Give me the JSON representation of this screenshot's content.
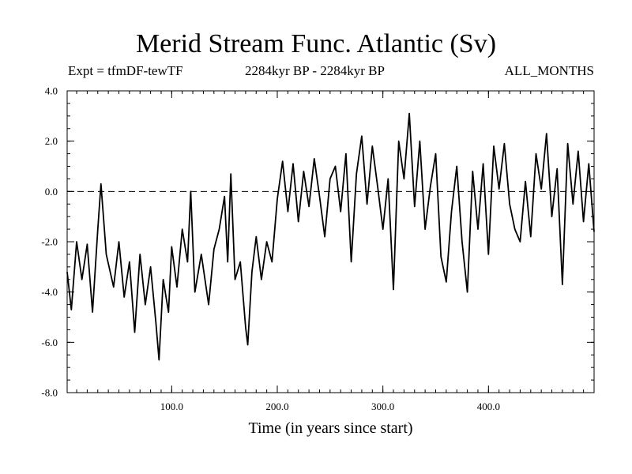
{
  "chart_data": {
    "type": "line",
    "title": "Merid Stream Func. Atlantic (Sv)",
    "experiment_label": "Expt = tfmDF-tewTF",
    "period_label": "2284kyr BP - 2284kyr BP",
    "season_label": "ALL_MONTHS",
    "xlabel": "Time (in years since start)",
    "ylabel": "",
    "xlim": [
      1,
      500
    ],
    "ylim": [
      -8,
      4
    ],
    "x_ticks": [
      100,
      200,
      300,
      400
    ],
    "x_tick_labels": [
      "100.0",
      "200.0",
      "300.0",
      "400.0"
    ],
    "y_ticks": [
      4,
      2,
      0,
      -2,
      -4,
      -6,
      -8
    ],
    "y_tick_labels": [
      "4.0",
      "2.0",
      "0.0",
      "-2.0",
      "-4.0",
      "-6.0",
      "-8.0"
    ],
    "reference_line": {
      "y": 0,
      "style": "dashed"
    },
    "series": [
      {
        "name": "Merid Stream Func. Atlantic",
        "x": [
          1,
          5,
          10,
          15,
          20,
          25,
          30,
          33,
          38,
          45,
          50,
          55,
          60,
          65,
          70,
          75,
          80,
          85,
          88,
          92,
          97,
          100,
          105,
          110,
          115,
          118,
          122,
          128,
          135,
          140,
          145,
          150,
          153,
          156,
          160,
          165,
          170,
          172,
          176,
          180,
          185,
          190,
          195,
          200,
          205,
          210,
          215,
          220,
          225,
          230,
          235,
          240,
          245,
          250,
          255,
          260,
          265,
          270,
          275,
          280,
          285,
          290,
          295,
          300,
          305,
          310,
          315,
          320,
          325,
          330,
          335,
          340,
          345,
          350,
          355,
          360,
          365,
          370,
          375,
          380,
          385,
          390,
          395,
          400,
          405,
          410,
          415,
          420,
          425,
          430,
          435,
          440,
          445,
          450,
          455,
          460,
          465,
          470,
          475,
          480,
          485,
          490,
          495,
          500
        ],
        "y": [
          -3.2,
          -4.7,
          -2.0,
          -3.5,
          -2.1,
          -4.8,
          -1.5,
          0.3,
          -2.5,
          -3.8,
          -2.0,
          -4.2,
          -2.8,
          -5.6,
          -2.5,
          -4.5,
          -3.0,
          -5.2,
          -6.7,
          -3.5,
          -4.8,
          -2.2,
          -3.8,
          -1.5,
          -2.8,
          0.0,
          -4.0,
          -2.5,
          -4.5,
          -2.3,
          -1.5,
          -0.2,
          -2.8,
          0.7,
          -3.5,
          -2.8,
          -5.4,
          -6.1,
          -3.2,
          -1.8,
          -3.5,
          -2.0,
          -2.8,
          -0.3,
          1.2,
          -0.8,
          1.1,
          -1.2,
          0.8,
          -0.6,
          1.3,
          -0.2,
          -1.8,
          0.5,
          1.0,
          -0.8,
          1.5,
          -2.8,
          0.7,
          2.2,
          -0.5,
          1.8,
          0.2,
          -1.5,
          0.5,
          -3.9,
          2.0,
          0.5,
          3.1,
          -0.6,
          2.0,
          -1.5,
          0.2,
          1.5,
          -2.6,
          -3.6,
          -0.8,
          1.0,
          -2.0,
          -4.0,
          0.8,
          -1.5,
          1.1,
          -2.5,
          1.8,
          0.1,
          1.9,
          -0.5,
          -1.5,
          -2.0,
          0.4,
          -1.8,
          1.5,
          0.1,
          2.3,
          -1.0,
          0.9,
          -3.7,
          1.9,
          -0.5,
          1.6,
          -1.2,
          1.1,
          -1.6
        ]
      }
    ]
  }
}
